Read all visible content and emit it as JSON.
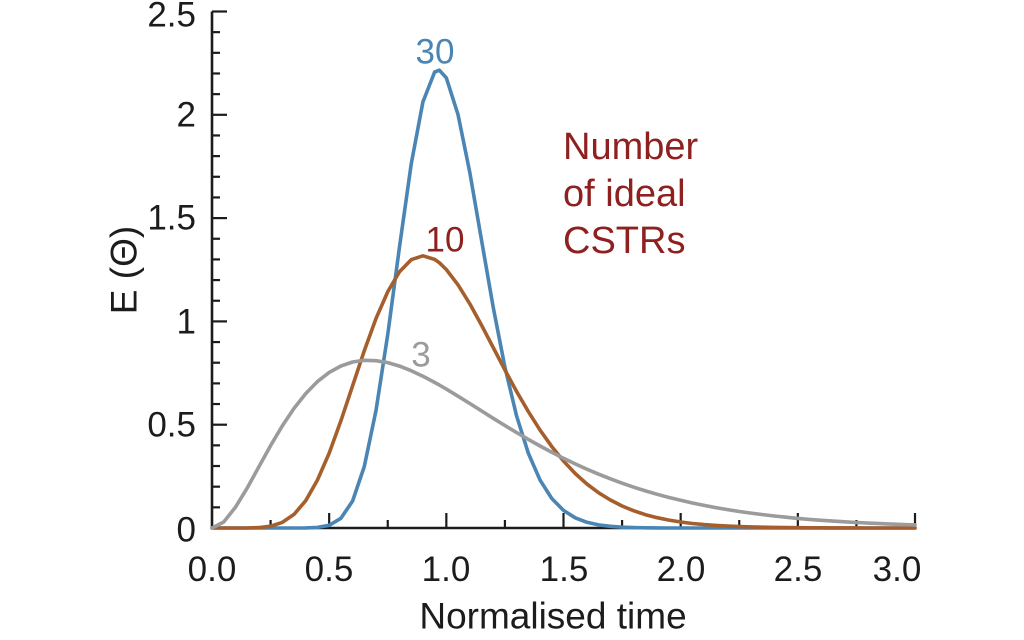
{
  "chart_data": {
    "type": "line",
    "xlabel": "Normalised time",
    "ylabel": "E (Θ)",
    "xlim": [
      0.0,
      3.0
    ],
    "ylim": [
      0.0,
      2.5
    ],
    "grid": false,
    "axis_color": "#1c1c1c",
    "x_tick_labels": [
      "0.0",
      "0.5",
      "1.0",
      "1.5",
      "2.0",
      "2.5",
      "3.0"
    ],
    "y_tick_labels": [
      "0",
      "0.5",
      "1",
      "1.5",
      "2",
      "2.5"
    ],
    "x_major_step": 0.5,
    "x_minor_step": 0.25,
    "y_major_step": 0.5,
    "y_minor_step": 0.1,
    "annotation": {
      "text": "Number of ideal CSTRs",
      "lines": [
        "Number",
        "of ideal",
        "CSTRs"
      ],
      "color": "#8e2020"
    },
    "legend": "inline curve labels",
    "x": [
      0,
      0.05,
      0.1,
      0.15,
      0.2,
      0.25,
      0.3,
      0.35,
      0.4,
      0.45,
      0.5,
      0.55,
      0.6,
      0.65,
      0.7,
      0.75,
      0.8,
      0.85,
      0.9,
      0.95,
      0.97,
      1,
      1.05,
      1.1,
      1.15,
      1.2,
      1.25,
      1.3,
      1.35,
      1.4,
      1.45,
      1.5,
      1.55,
      1.6,
      1.65,
      1.7,
      1.75,
      1.8,
      1.85,
      1.9,
      1.95,
      2,
      2.05,
      2.1,
      2.15,
      2.2,
      2.25,
      2.3,
      2.35,
      2.4,
      2.45,
      2.5,
      2.55,
      2.6,
      2.65,
      2.7,
      2.75,
      2.8,
      2.85,
      2.9,
      2.95,
      3
    ],
    "series": [
      {
        "name": "30",
        "n_cstrs": 30,
        "color": "#4a85b4",
        "label_color": "#4a85b4",
        "peak": {
          "x": 0.97,
          "y": 2.22
        },
        "values": [
          0,
          0,
          0,
          0,
          0,
          0,
          0,
          0,
          0.0004,
          0.0028,
          0.0133,
          0.0469,
          0.1307,
          0.2977,
          0.5686,
          0.9383,
          1.3606,
          1.7612,
          2.0619,
          2.2069,
          2.2161,
          2.1793,
          2.0016,
          1.7212,
          1.394,
          1.0686,
          0.779,
          0.5421,
          0.3613,
          0.2315,
          0.1429,
          0.0852,
          0.0492,
          0.0276,
          0.015,
          0.008,
          0.0041,
          0.0021,
          0.001,
          0.0005,
          0.0002,
          0.0001,
          0,
          0,
          0,
          0,
          0,
          0,
          0,
          0,
          0,
          0,
          0,
          0,
          0,
          0,
          0,
          0,
          0,
          0,
          0,
          0
        ]
      },
      {
        "name": "10",
        "n_cstrs": 10,
        "color": "#a55f2d",
        "label_color": "#8e2020",
        "peak": {
          "x": 0.9,
          "y": 1.32
        },
        "values": [
          0,
          0,
          0,
          0.0002,
          0.0019,
          0.0086,
          0.027,
          0.0656,
          0.1323,
          0.2317,
          0.3627,
          0.5187,
          0.6884,
          0.8581,
          1.014,
          1.1444,
          1.2408,
          1.2987,
          1.3176,
          1.3001,
          1.284,
          1.2511,
          1.1773,
          1.0852,
          0.9821,
          0.8737,
          0.7652,
          0.6605,
          0.5627,
          0.4734,
          0.3938,
          0.3241,
          0.264,
          0.2131,
          0.1705,
          0.1353,
          0.1065,
          0.0833,
          0.0646,
          0.0498,
          0.0382,
          0.0291,
          0.022,
          0.0166,
          0.0124,
          0.0093,
          0.0069,
          0.0051,
          0.0037,
          0.0027,
          0.002,
          0.0015,
          0.0011,
          0.0008,
          0.0006,
          0.0004,
          0.0003,
          0.0002,
          0.0002,
          0.0001,
          0.0001,
          0.0001
        ]
      },
      {
        "name": "3",
        "n_cstrs": 3,
        "color": "#9b9b9b",
        "label_color": "#9b9b9b",
        "peak": {
          "x": 0.67,
          "y": 0.81
        },
        "values": [
          0,
          0.0291,
          0.1,
          0.1937,
          0.2964,
          0.3986,
          0.494,
          0.5787,
          0.6506,
          0.7087,
          0.7531,
          0.7843,
          0.8034,
          0.8115,
          0.81,
          0.8004,
          0.7838,
          0.7616,
          0.7349,
          0.7048,
          0.692,
          0.6721,
          0.6378,
          0.6025,
          0.5668,
          0.5312,
          0.4961,
          0.4618,
          0.4287,
          0.3968,
          0.3664,
          0.3374,
          0.3101,
          0.2844,
          0.2603,
          0.2379,
          0.217,
          0.1976,
          0.1796,
          0.1631,
          0.1478,
          0.1339,
          0.121,
          0.1093,
          0.0986,
          0.0889,
          0.08,
          0.072,
          0.0647,
          0.0581,
          0.0521,
          0.0467,
          0.0418,
          0.0374,
          0.0334,
          0.0299,
          0.0267,
          0.0238,
          0.0212,
          0.0189,
          0.0168,
          0.015
        ]
      }
    ]
  }
}
